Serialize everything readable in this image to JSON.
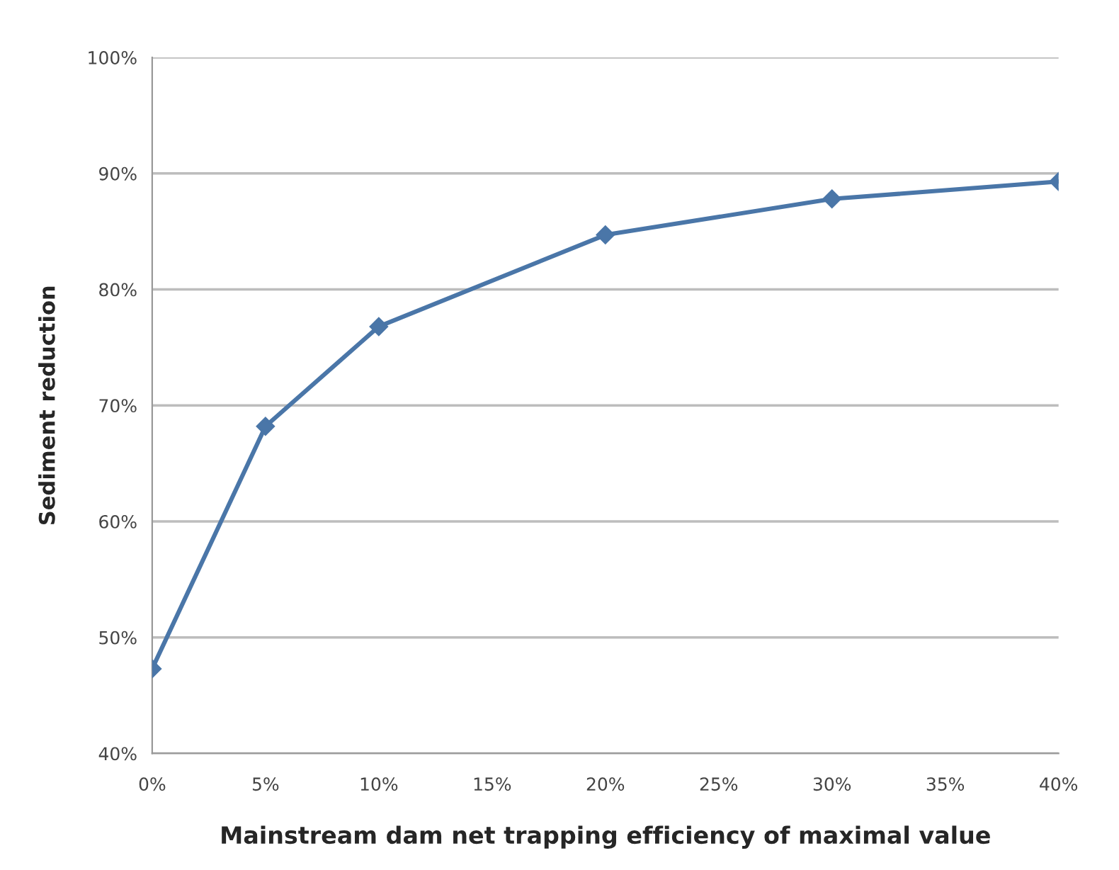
{
  "chart_data": {
    "type": "line",
    "xlabel": "Mainstream dam net trapping efficiency of maximal value",
    "ylabel": "Sediment reduction",
    "x": [
      0,
      5,
      10,
      20,
      30,
      40
    ],
    "series": [
      {
        "color": "#4a76a8",
        "values": [
          47.3,
          68.2,
          76.8,
          84.7,
          87.8,
          89.3
        ]
      }
    ],
    "xlim": [
      0,
      40
    ],
    "xticks": [
      {
        "value": 0,
        "label": "0%"
      },
      {
        "value": 5,
        "label": "5%"
      },
      {
        "value": 10,
        "label": "10%"
      },
      {
        "value": 15,
        "label": "15%"
      },
      {
        "value": 20,
        "label": "20%"
      },
      {
        "value": 25,
        "label": "25%"
      },
      {
        "value": 30,
        "label": "30%"
      },
      {
        "value": 35,
        "label": "35%"
      },
      {
        "value": 40,
        "label": "40%"
      }
    ],
    "ylim": [
      40,
      100
    ],
    "yticks": [
      {
        "value": 40,
        "label": "40%"
      },
      {
        "value": 50,
        "label": "50%"
      },
      {
        "value": 60,
        "label": "60%"
      },
      {
        "value": 70,
        "label": "70%"
      },
      {
        "value": 80,
        "label": "80%"
      },
      {
        "value": 90,
        "label": "90%"
      },
      {
        "value": 100,
        "label": "100%"
      }
    ],
    "grid": "y",
    "marker": "diamond",
    "line_style": "solid"
  }
}
